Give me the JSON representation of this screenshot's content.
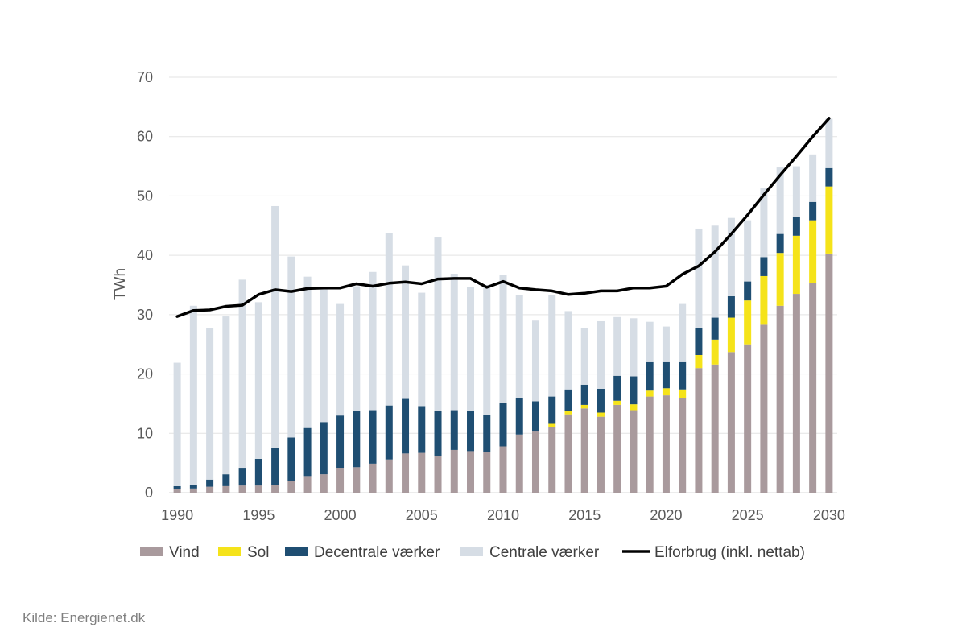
{
  "source_text": "Kilde: Energienet.dk",
  "chart_data": {
    "type": "bar",
    "stacked": true,
    "ylabel": "TWh",
    "ylim": [
      0,
      70
    ],
    "yticks": [
      0,
      10,
      20,
      30,
      40,
      50,
      60,
      70
    ],
    "xtick_labels": [
      "1990",
      "1995",
      "2000",
      "2005",
      "2010",
      "2015",
      "2020",
      "2025",
      "2030"
    ],
    "grid": true,
    "legend_position": "bottom",
    "categories": [
      1990,
      1991,
      1992,
      1993,
      1994,
      1995,
      1996,
      1997,
      1998,
      1999,
      2000,
      2001,
      2002,
      2003,
      2004,
      2005,
      2006,
      2007,
      2008,
      2009,
      2010,
      2011,
      2012,
      2013,
      2014,
      2015,
      2016,
      2017,
      2018,
      2019,
      2020,
      2021,
      2022,
      2023,
      2024,
      2025,
      2026,
      2027,
      2028,
      2029,
      2030
    ],
    "series": [
      {
        "name": "Vind",
        "kind": "bar",
        "color": "#a99a9d",
        "values": [
          0.6,
          0.7,
          1.0,
          1.1,
          1.2,
          1.2,
          1.3,
          2.0,
          2.8,
          3.1,
          4.2,
          4.3,
          4.9,
          5.6,
          6.6,
          6.7,
          6.1,
          7.2,
          7.0,
          6.8,
          7.8,
          9.8,
          10.3,
          11.1,
          13.2,
          14.2,
          12.8,
          14.8,
          13.9,
          16.2,
          16.4,
          16.0,
          21.0,
          21.6,
          23.7,
          25.0,
          28.3,
          31.5,
          33.5,
          35.4,
          40.3
        ]
      },
      {
        "name": "Sol",
        "kind": "bar",
        "color": "#f5e31a",
        "values": [
          0,
          0,
          0,
          0,
          0,
          0,
          0,
          0,
          0,
          0,
          0,
          0,
          0,
          0,
          0,
          0,
          0,
          0,
          0,
          0,
          0,
          0,
          0,
          0.5,
          0.6,
          0.6,
          0.7,
          0.7,
          1.0,
          1.0,
          1.2,
          1.4,
          2.2,
          4.2,
          5.8,
          7.4,
          8.2,
          8.9,
          9.8,
          10.5,
          11.3
        ]
      },
      {
        "name": "Decentrale værker",
        "kind": "bar",
        "color": "#1f4e72",
        "values": [
          0.5,
          0.6,
          1.2,
          2.0,
          3.0,
          4.5,
          6.3,
          7.3,
          8.1,
          8.8,
          8.8,
          9.5,
          9.0,
          9.1,
          9.2,
          7.9,
          7.7,
          6.7,
          6.8,
          6.3,
          7.3,
          6.2,
          5.1,
          4.6,
          3.6,
          3.4,
          4.0,
          4.2,
          4.7,
          4.8,
          4.4,
          4.6,
          4.5,
          3.7,
          3.6,
          3.2,
          3.2,
          3.2,
          3.2,
          3.1,
          3.1
        ]
      },
      {
        "name": "Centrale værker",
        "kind": "bar",
        "color": "#d6dde5",
        "values": [
          20.8,
          30.2,
          25.5,
          26.6,
          31.7,
          26.4,
          40.7,
          30.5,
          25.5,
          22.8,
          18.8,
          21.0,
          23.3,
          29.1,
          22.5,
          19.1,
          29.2,
          23.0,
          20.8,
          21.9,
          21.6,
          17.3,
          13.6,
          17.1,
          13.2,
          9.6,
          11.4,
          9.9,
          9.8,
          6.8,
          6.0,
          9.8,
          16.8,
          15.5,
          13.2,
          10.3,
          11.7,
          11.2,
          8.5,
          8.0,
          8.3
        ]
      },
      {
        "name": "Elforbrug (inkl. nettab)",
        "kind": "line",
        "color": "#000000",
        "values": [
          29.7,
          30.7,
          30.8,
          31.4,
          31.6,
          33.4,
          34.2,
          33.9,
          34.4,
          34.5,
          34.5,
          35.2,
          34.8,
          35.3,
          35.5,
          35.2,
          36.0,
          36.1,
          36.1,
          34.6,
          35.6,
          34.5,
          34.2,
          34.0,
          33.4,
          33.6,
          34.0,
          34.0,
          34.5,
          34.5,
          34.8,
          36.8,
          38.2,
          40.6,
          43.6,
          46.8,
          50.2,
          53.5,
          56.7,
          60.0,
          63.1
        ]
      }
    ]
  }
}
